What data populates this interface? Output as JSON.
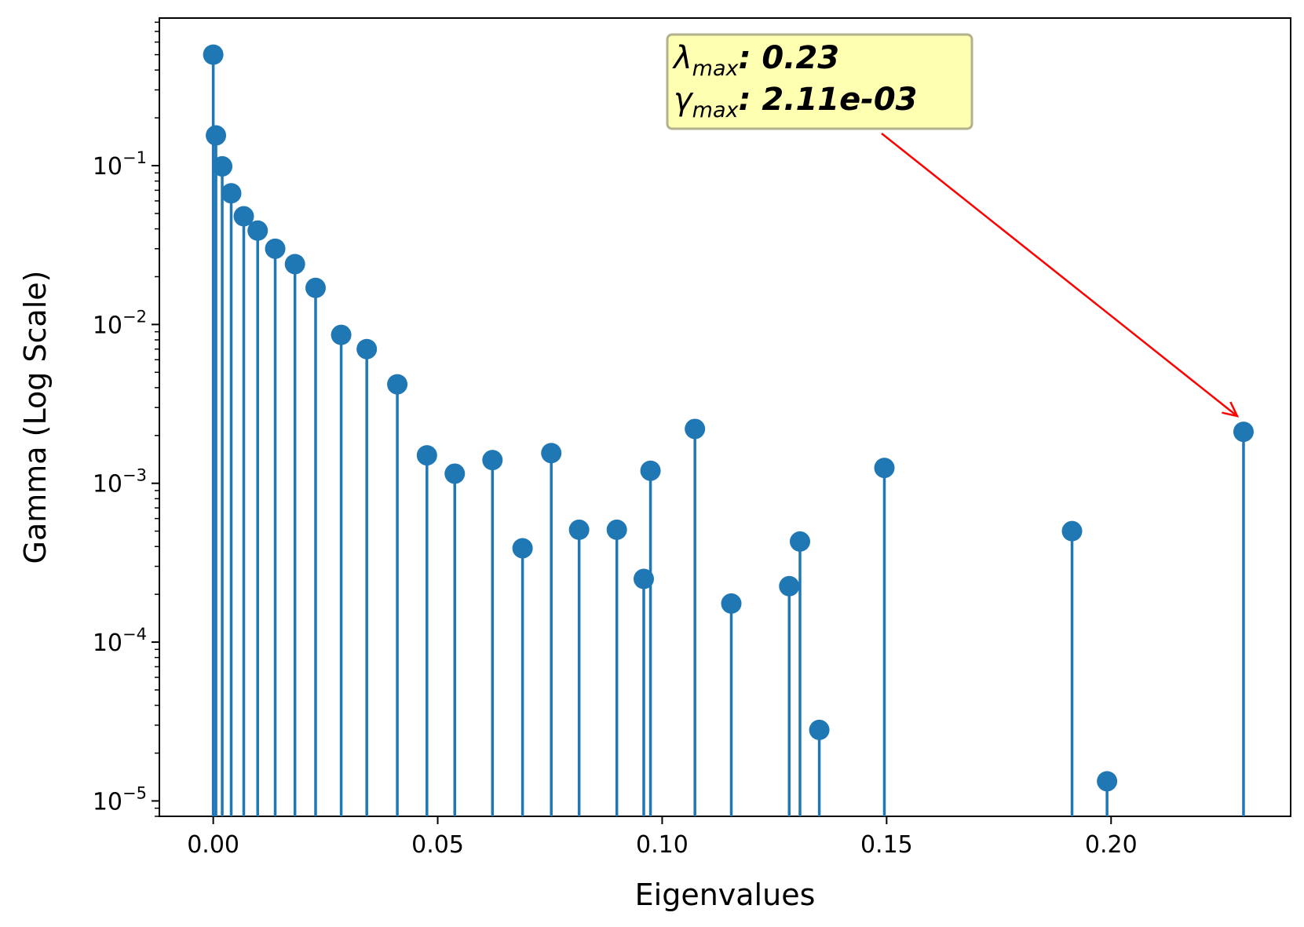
{
  "chart_data": {
    "type": "stem",
    "title": "",
    "xlabel": "Eigenvalues",
    "ylabel": "Gamma (Log Scale)",
    "xlim": [
      -0.012,
      0.24
    ],
    "yscale": "log",
    "ylim": [
      8e-06,
      0.85
    ],
    "x_ticks": [
      0.0,
      0.05,
      0.1,
      0.15,
      0.2
    ],
    "x_tick_labels": [
      "0.00",
      "0.05",
      "0.10",
      "0.15",
      "0.20"
    ],
    "y_ticks": [
      1e-05,
      0.0001,
      0.001,
      0.01,
      0.1
    ],
    "y_tick_labels": [
      {
        "base": "10",
        "exp": "−5"
      },
      {
        "base": "10",
        "exp": "−4"
      },
      {
        "base": "10",
        "exp": "−3"
      },
      {
        "base": "10",
        "exp": "−2"
      },
      {
        "base": "10",
        "exp": "−1"
      }
    ],
    "series": [
      {
        "name": "gamma",
        "color": "#1f77b4",
        "points": [
          {
            "x": 0.0,
            "y": 0.5
          },
          {
            "x": 0.0006,
            "y": 0.155
          },
          {
            "x": 0.002,
            "y": 0.099
          },
          {
            "x": 0.004,
            "y": 0.067
          },
          {
            "x": 0.0068,
            "y": 0.048
          },
          {
            "x": 0.0099,
            "y": 0.039
          },
          {
            "x": 0.0138,
            "y": 0.03
          },
          {
            "x": 0.0182,
            "y": 0.024
          },
          {
            "x": 0.0228,
            "y": 0.017
          },
          {
            "x": 0.0285,
            "y": 0.0086
          },
          {
            "x": 0.0342,
            "y": 0.007
          },
          {
            "x": 0.041,
            "y": 0.0042
          },
          {
            "x": 0.0476,
            "y": 0.0015
          },
          {
            "x": 0.0538,
            "y": 0.00115
          },
          {
            "x": 0.0622,
            "y": 0.0014
          },
          {
            "x": 0.0689,
            "y": 0.00039
          },
          {
            "x": 0.0753,
            "y": 0.00155
          },
          {
            "x": 0.0815,
            "y": 0.00051
          },
          {
            "x": 0.0899,
            "y": 0.00051
          },
          {
            "x": 0.0959,
            "y": 0.00025
          },
          {
            "x": 0.0974,
            "y": 0.0012
          },
          {
            "x": 0.1073,
            "y": 0.0022
          },
          {
            "x": 0.1154,
            "y": 0.000175
          },
          {
            "x": 0.1283,
            "y": 0.000225
          },
          {
            "x": 0.1307,
            "y": 0.00043
          },
          {
            "x": 0.135,
            "y": 2.8e-05
          },
          {
            "x": 0.1495,
            "y": 0.00125
          },
          {
            "x": 0.1913,
            "y": 0.0005
          },
          {
            "x": 0.1991,
            "y": 1.33e-05
          },
          {
            "x": 0.2295,
            "y": 0.00211
          }
        ]
      }
    ],
    "annotation": {
      "line1_symbol": "λ",
      "line1_sub": "max",
      "line1_value": ": 0.23",
      "line2_symbol": "γ",
      "line2_sub": "max",
      "line2_value": ": 2.11e-03",
      "target": {
        "x": 0.2295,
        "y": 0.00211
      },
      "box_color": "#ffffb2",
      "box_edge_color": "#b2b28e",
      "arrow_color": "#ff0000"
    }
  }
}
